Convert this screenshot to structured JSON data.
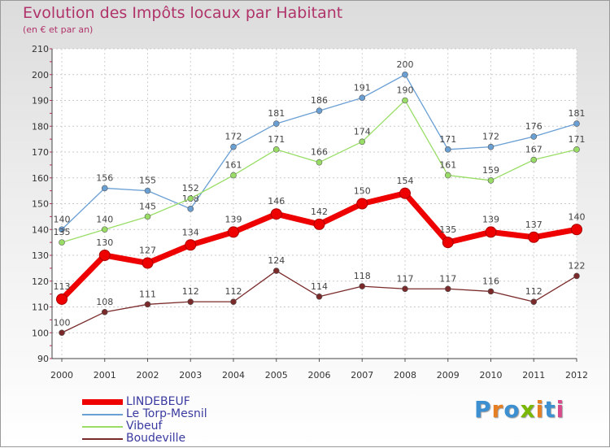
{
  "header": {
    "title": "Evolution des Impôts locaux par Habitant",
    "subtitle": "(en € et par an)"
  },
  "brand": {
    "text": "Proxiti",
    "colors": [
      "#3c8fd0",
      "#e67e22",
      "#3c8fd0",
      "#7ab800",
      "#e67e22",
      "#3c8fd0",
      "#d94a8c"
    ]
  },
  "chart_data": {
    "type": "line",
    "title": "Evolution des Impôts locaux par Habitant",
    "subtitle": "(en € et par an)",
    "xlabel": "",
    "ylabel": "",
    "ylim": [
      90,
      210
    ],
    "yticks": [
      90,
      100,
      110,
      120,
      130,
      140,
      150,
      160,
      170,
      180,
      190,
      200,
      210
    ],
    "x": [
      "2000",
      "2001",
      "2002",
      "2003",
      "2004",
      "2005",
      "2006",
      "2007",
      "2008",
      "2009",
      "2010",
      "2011",
      "2012"
    ],
    "legend_position": "bottom-left",
    "series": [
      {
        "name": "LINDEBEUF",
        "color": "#ee0000",
        "bold": true,
        "values": [
          113,
          130,
          127,
          134,
          139,
          146,
          142,
          150,
          154,
          135,
          139,
          137,
          140
        ]
      },
      {
        "name": "Le Torp-Mesnil",
        "color": "#6a9fd4",
        "bold": false,
        "values": [
          140,
          156,
          155,
          148,
          172,
          181,
          186,
          191,
          200,
          171,
          172,
          176,
          181
        ]
      },
      {
        "name": "Vibeuf",
        "color": "#99dd66",
        "bold": false,
        "values": [
          135,
          140,
          145,
          152,
          161,
          171,
          166,
          174,
          190,
          161,
          159,
          167,
          171
        ]
      },
      {
        "name": "Boudeville",
        "color": "#7a2a2a",
        "bold": false,
        "values": [
          100,
          108,
          111,
          112,
          112,
          124,
          114,
          118,
          117,
          117,
          116,
          112,
          122
        ]
      }
    ]
  }
}
